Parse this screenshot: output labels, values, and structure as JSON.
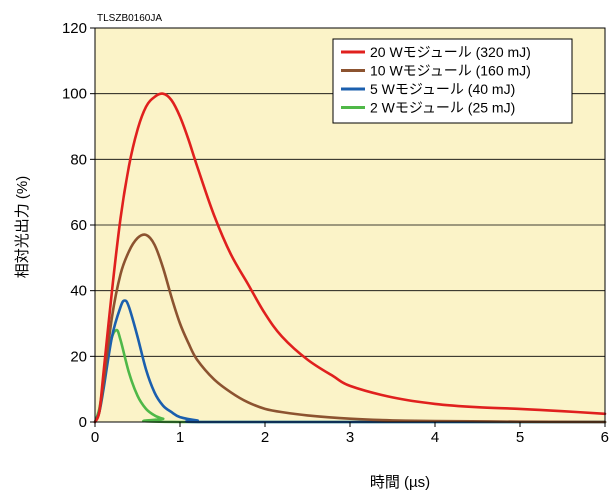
{
  "figure_code": "TLSZB0160JA",
  "chart_data": {
    "type": "line",
    "xlabel": "時間 (µs)",
    "ylabel": "相対光出力 (%)",
    "xlim": [
      0,
      6
    ],
    "ylim": [
      0,
      120
    ],
    "xticks": [
      0,
      1,
      2,
      3,
      4,
      5,
      6
    ],
    "yticks": [
      0,
      20,
      40,
      60,
      80,
      100,
      120
    ],
    "grid": "horizontal",
    "legend_position": "top-right",
    "background_color": "#fbf3c8",
    "series": [
      {
        "name": "20 Wモジュール (320 mJ)",
        "color": "#e0201e",
        "points": [
          [
            0,
            0
          ],
          [
            0.05,
            3
          ],
          [
            0.1,
            15
          ],
          [
            0.2,
            40
          ],
          [
            0.3,
            62
          ],
          [
            0.4,
            78
          ],
          [
            0.5,
            89
          ],
          [
            0.6,
            96
          ],
          [
            0.7,
            99
          ],
          [
            0.8,
            100
          ],
          [
            0.9,
            98
          ],
          [
            1.0,
            93
          ],
          [
            1.1,
            86
          ],
          [
            1.2,
            78
          ],
          [
            1.4,
            63
          ],
          [
            1.6,
            51
          ],
          [
            1.8,
            42
          ],
          [
            2.0,
            33
          ],
          [
            2.2,
            26
          ],
          [
            2.5,
            19
          ],
          [
            2.8,
            14
          ],
          [
            3.0,
            11
          ],
          [
            3.5,
            7.5
          ],
          [
            4.0,
            5.5
          ],
          [
            4.5,
            4.5
          ],
          [
            5.0,
            4
          ],
          [
            5.5,
            3.3
          ],
          [
            6.0,
            2.5
          ]
        ]
      },
      {
        "name": "10 Wモジュール (160 mJ)",
        "color": "#8c5330",
        "points": [
          [
            0,
            0
          ],
          [
            0.05,
            3
          ],
          [
            0.1,
            12
          ],
          [
            0.2,
            32
          ],
          [
            0.3,
            45
          ],
          [
            0.4,
            52
          ],
          [
            0.5,
            56
          ],
          [
            0.6,
            57
          ],
          [
            0.7,
            54
          ],
          [
            0.8,
            47
          ],
          [
            0.9,
            38
          ],
          [
            1.0,
            30
          ],
          [
            1.1,
            24
          ],
          [
            1.2,
            19
          ],
          [
            1.4,
            13
          ],
          [
            1.6,
            9
          ],
          [
            1.8,
            6
          ],
          [
            2.0,
            4
          ],
          [
            2.2,
            3
          ],
          [
            2.5,
            2
          ],
          [
            3.0,
            1
          ],
          [
            3.5,
            0.5
          ],
          [
            4.0,
            0.3
          ],
          [
            5.0,
            0.1
          ],
          [
            6.0,
            0
          ]
        ]
      },
      {
        "name": "5 Wモジュール (40 mJ)",
        "color": "#1b5fae",
        "points": [
          [
            0,
            0
          ],
          [
            0.05,
            3
          ],
          [
            0.1,
            10
          ],
          [
            0.2,
            26
          ],
          [
            0.3,
            35
          ],
          [
            0.35,
            37
          ],
          [
            0.4,
            35
          ],
          [
            0.5,
            26
          ],
          [
            0.6,
            16
          ],
          [
            0.7,
            9
          ],
          [
            0.8,
            5
          ],
          [
            0.9,
            3
          ],
          [
            1.0,
            1.5
          ],
          [
            1.2,
            0.5
          ],
          [
            1.5,
            0
          ],
          [
            6.0,
            0
          ]
        ]
      },
      {
        "name": "2 Wモジュール (25 mJ)",
        "color": "#4fb848",
        "points": [
          [
            0,
            0
          ],
          [
            0.05,
            4
          ],
          [
            0.1,
            12
          ],
          [
            0.18,
            24
          ],
          [
            0.25,
            28
          ],
          [
            0.3,
            25
          ],
          [
            0.4,
            15
          ],
          [
            0.5,
            8
          ],
          [
            0.6,
            4
          ],
          [
            0.7,
            2
          ],
          [
            0.8,
            1
          ],
          [
            1.0,
            0
          ],
          [
            6.0,
            0
          ]
        ]
      }
    ]
  }
}
